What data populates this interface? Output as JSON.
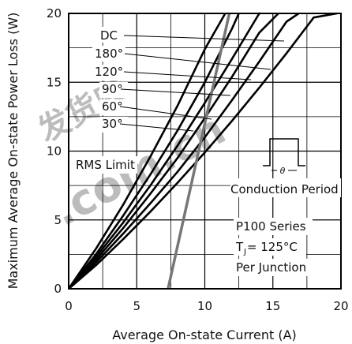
{
  "chart_data": {
    "type": "line",
    "xlabel": "Average On-state Current (A)",
    "ylabel": "Maximum Average On-state Power Loss (W)",
    "xlim": [
      0,
      20
    ],
    "ylim": [
      0,
      20
    ],
    "xticks": [
      0,
      5,
      10,
      15,
      20
    ],
    "yticks": [
      0,
      5,
      10,
      15,
      20
    ],
    "grid": true,
    "series": [
      {
        "name": "30°",
        "x": [
          0,
          2,
          4,
          6,
          8,
          10,
          11.5
        ],
        "y": [
          0,
          2.9,
          6.1,
          9.6,
          13.3,
          17.4,
          20
        ]
      },
      {
        "name": "60°",
        "x": [
          0,
          2,
          4,
          6,
          8,
          10,
          12,
          12.5
        ],
        "y": [
          0,
          2.5,
          5.3,
          8.3,
          11.5,
          15.0,
          18.9,
          20
        ]
      },
      {
        "name": "90°",
        "x": [
          0,
          2,
          4,
          6,
          8,
          10,
          12,
          14,
          14.1
        ],
        "y": [
          0,
          2.3,
          4.8,
          7.5,
          10.4,
          13.5,
          16.7,
          20,
          20
        ]
      },
      {
        "name": "120°",
        "x": [
          0,
          2,
          4,
          6,
          8,
          10,
          12,
          14,
          15.4
        ],
        "y": [
          0,
          2.1,
          4.4,
          6.9,
          9.5,
          12.4,
          15.4,
          18.6,
          20
        ]
      },
      {
        "name": "180°",
        "x": [
          0,
          2,
          4,
          6,
          8,
          10,
          12,
          14,
          16,
          16.9
        ],
        "y": [
          0,
          1.9,
          4.0,
          6.2,
          8.5,
          11.0,
          13.7,
          16.5,
          19.4,
          20
        ]
      },
      {
        "name": "DC",
        "x": [
          0,
          2,
          4,
          6,
          8,
          10,
          12,
          14,
          16,
          18,
          19.7
        ],
        "y": [
          0,
          1.7,
          3.6,
          5.6,
          7.7,
          9.9,
          12.2,
          14.6,
          17.1,
          19.7,
          20
        ]
      }
    ],
    "rms_limit": {
      "label": "RMS Limit",
      "x": [
        7.3,
        11.8
      ],
      "y": [
        0,
        20
      ]
    },
    "legend_labels": [
      "DC",
      "180°",
      "120°",
      "90°",
      "60°",
      "30°"
    ],
    "inset_label": "Conduction Period",
    "inset_symbol": "θ",
    "annotations": [
      "P100 Series",
      "T  = 125°C",
      "Per Junction"
    ],
    "tj_subscript": "J"
  },
  "watermark": "发货库.com.cn",
  "colors": {
    "line": "#000000",
    "rms": "#777777",
    "watermark": "#e03a2a"
  }
}
